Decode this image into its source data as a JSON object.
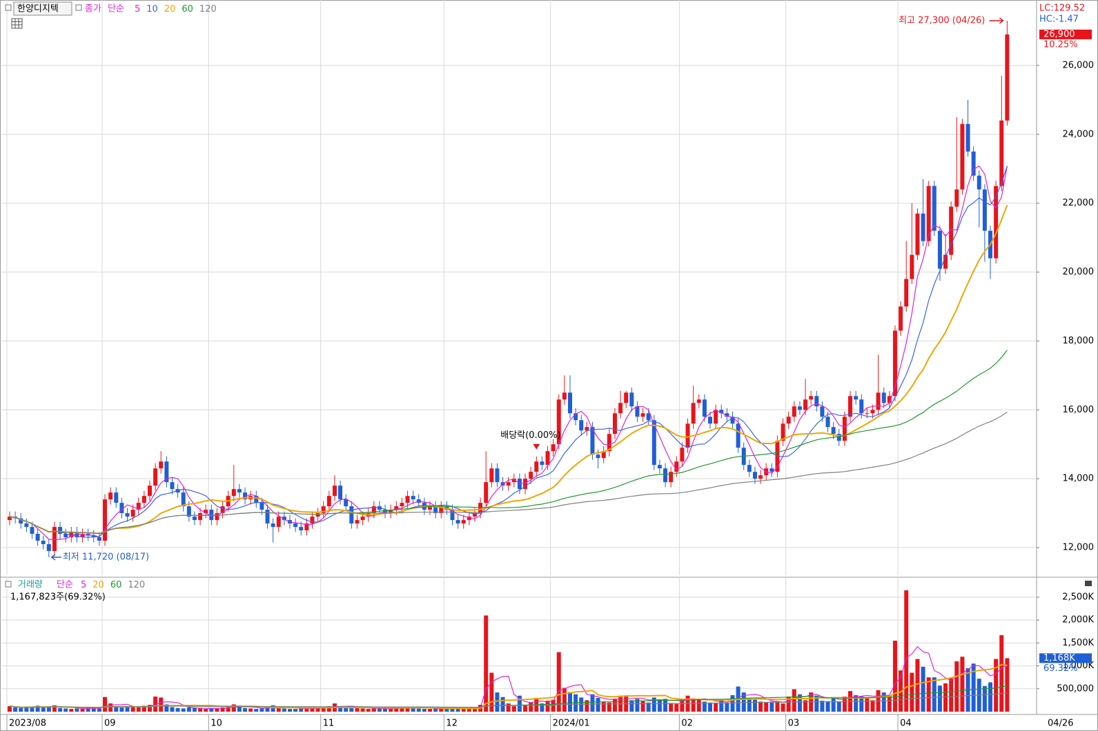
{
  "chart_data": {
    "type": "candlestick",
    "title": "한양디지텍",
    "categories": [
      "2023/08",
      null,
      null,
      null,
      null,
      null,
      null,
      null,
      null,
      null,
      null,
      null,
      null,
      null,
      null,
      null,
      null,
      "09",
      null,
      null,
      null,
      null,
      null,
      null,
      null,
      null,
      null,
      null,
      null,
      null,
      null,
      null,
      null,
      null,
      null,
      null,
      "10",
      null,
      null,
      null,
      null,
      null,
      null,
      null,
      null,
      null,
      null,
      null,
      null,
      null,
      null,
      null,
      null,
      null,
      null,
      null,
      "11",
      null,
      null,
      null,
      null,
      null,
      null,
      null,
      null,
      null,
      null,
      null,
      null,
      null,
      null,
      null,
      null,
      null,
      null,
      null,
      null,
      null,
      "12",
      null,
      null,
      null,
      null,
      null,
      null,
      null,
      null,
      null,
      null,
      null,
      null,
      null,
      null,
      null,
      null,
      null,
      null,
      "2024/01",
      null,
      null,
      null,
      null,
      null,
      null,
      null,
      null,
      null,
      null,
      null,
      null,
      null,
      null,
      null,
      null,
      null,
      null,
      null,
      null,
      null,
      null,
      "02",
      null,
      null,
      null,
      null,
      null,
      null,
      null,
      null,
      null,
      null,
      null,
      null,
      null,
      null,
      null,
      null,
      null,
      null,
      "03",
      null,
      null,
      null,
      null,
      null,
      null,
      null,
      null,
      null,
      null,
      null,
      null,
      null,
      null,
      null,
      null,
      null,
      null,
      null,
      "04",
      null,
      null,
      null,
      null,
      null,
      null,
      null,
      null,
      null,
      null,
      null,
      null,
      null,
      null,
      null,
      null,
      null,
      null,
      null
    ],
    "open": [
      12800,
      12900,
      12850,
      12700,
      12600,
      12400,
      12200,
      12100,
      11900,
      12600,
      12400,
      12300,
      12450,
      12300,
      12400,
      12350,
      12300,
      12200,
      13400,
      13600,
      13300,
      13000,
      12900,
      13100,
      13300,
      13500,
      13800,
      14300,
      14500,
      13900,
      13700,
      13600,
      13200,
      12900,
      12800,
      13000,
      13100,
      12800,
      13000,
      13200,
      13500,
      13700,
      13600,
      13400,
      13500,
      13300,
      13100,
      12700,
      12600,
      12900,
      12800,
      12700,
      12600,
      12500,
      12700,
      12900,
      13000,
      13200,
      13500,
      13800,
      13400,
      13200,
      12700,
      12800,
      12900,
      13000,
      13200,
      13100,
      13000,
      13100,
      13200,
      13300,
      13500,
      13400,
      13300,
      13100,
      13200,
      13000,
      13200,
      13100,
      12800,
      12700,
      12800,
      12900,
      13000,
      13300,
      13900,
      14300,
      13900,
      13800,
      13900,
      14000,
      13700,
      14000,
      14200,
      14500,
      14400,
      14800,
      15000,
      16300,
      16500,
      15900,
      15700,
      15400,
      15500,
      14700,
      14600,
      14800,
      15300,
      15900,
      16200,
      16500,
      16100,
      15800,
      15900,
      15700,
      14400,
      14300,
      13900,
      14200,
      14500,
      14900,
      15600,
      16200,
      16300,
      15800,
      15600,
      16000,
      15900,
      15800,
      15600,
      14900,
      14400,
      14200,
      14000,
      14100,
      14300,
      14200,
      15100,
      15600,
      15800,
      16100,
      16000,
      16300,
      16400,
      16100,
      15800,
      15500,
      15300,
      15100,
      15800,
      16400,
      16300,
      15900,
      15900,
      16000,
      16500,
      16200,
      16400,
      18300,
      19000,
      19800,
      20500,
      21700,
      20900,
      22500,
      21200,
      20100,
      20500,
      21900,
      22400,
      24300,
      23500,
      22800,
      22400,
      21200,
      20400,
      22500,
      24400
    ],
    "high": [
      13050,
      13050,
      13000,
      12850,
      12750,
      12550,
      12350,
      12250,
      12750,
      12750,
      12550,
      12600,
      12600,
      12550,
      12550,
      12500,
      12450,
      13550,
      13750,
      13750,
      13450,
      13150,
      13250,
      13450,
      13650,
      13950,
      14450,
      14800,
      14650,
      14050,
      13850,
      13750,
      13350,
      13050,
      13150,
      13250,
      13250,
      13150,
      13350,
      13650,
      14400,
      13850,
      13750,
      13650,
      13650,
      13450,
      13250,
      12850,
      13050,
      13050,
      12950,
      12850,
      12750,
      12850,
      13050,
      13150,
      13350,
      13650,
      14100,
      13950,
      13550,
      13350,
      12950,
      13050,
      13150,
      13350,
      13350,
      13250,
      13250,
      13350,
      13450,
      13650,
      13650,
      13550,
      13450,
      13350,
      13350,
      13350,
      13350,
      13250,
      12950,
      12950,
      13050,
      13150,
      13450,
      14800,
      14450,
      14450,
      14050,
      14050,
      14150,
      14150,
      14150,
      14350,
      14650,
      14650,
      14950,
      15150,
      16450,
      17000,
      17000,
      16050,
      15850,
      15650,
      15650,
      14850,
      14950,
      15450,
      16050,
      16550,
      16550,
      16650,
      16250,
      16050,
      16050,
      15850,
      14550,
      14450,
      14350,
      14650,
      15050,
      15750,
      16700,
      16450,
      16450,
      15950,
      16150,
      16150,
      16050,
      15950,
      15750,
      15050,
      14550,
      14350,
      14250,
      14450,
      14450,
      15250,
      15750,
      15950,
      16250,
      16250,
      16900,
      16550,
      16550,
      16250,
      15950,
      15650,
      15450,
      15950,
      16550,
      16550,
      16450,
      16050,
      16150,
      17600,
      16650,
      16550,
      18450,
      19150,
      20900,
      22000,
      21850,
      22700,
      22650,
      22650,
      21350,
      21100,
      22050,
      24500,
      24450,
      25000,
      23650,
      22950,
      22550,
      21350,
      22650,
      25700,
      27300
    ],
    "low": [
      12650,
      12700,
      12550,
      12450,
      12250,
      12050,
      11950,
      11720,
      11750,
      12250,
      12150,
      12150,
      12150,
      12150,
      12200,
      12150,
      12050,
      12050,
      13250,
      13150,
      12850,
      12750,
      12750,
      12950,
      13150,
      13350,
      13650,
      14150,
      13750,
      13550,
      13450,
      13050,
      12750,
      12650,
      12650,
      12850,
      12650,
      12650,
      12850,
      13050,
      13350,
      13450,
      13250,
      13250,
      13150,
      12950,
      12550,
      12150,
      12450,
      12650,
      12550,
      12450,
      12350,
      12350,
      12550,
      12750,
      12850,
      13050,
      13350,
      13250,
      13050,
      12550,
      12550,
      12650,
      12750,
      12850,
      12950,
      12850,
      12850,
      12950,
      13050,
      13150,
      13250,
      13150,
      12950,
      12950,
      12850,
      12850,
      12950,
      12650,
      12550,
      12550,
      12650,
      12750,
      12850,
      13150,
      13750,
      13750,
      13650,
      13650,
      13750,
      13550,
      13550,
      13850,
      14050,
      14250,
      14250,
      14650,
      14850,
      16150,
      15750,
      15550,
      15250,
      15250,
      14550,
      14300,
      14450,
      14650,
      15150,
      15750,
      16050,
      15950,
      15650,
      15650,
      15550,
      14250,
      14150,
      13750,
      13750,
      14050,
      14350,
      14750,
      15450,
      16050,
      15650,
      15450,
      15450,
      15750,
      15650,
      15450,
      14750,
      14250,
      14050,
      13850,
      13850,
      13950,
      14050,
      14050,
      14950,
      15450,
      15650,
      15850,
      15850,
      16150,
      15950,
      15650,
      15350,
      15150,
      14950,
      14950,
      15650,
      16150,
      15750,
      15750,
      15750,
      15850,
      16050,
      16050,
      16250,
      18150,
      18850,
      19650,
      20350,
      20750,
      20750,
      21050,
      19750,
      19950,
      20350,
      21750,
      22250,
      23350,
      22650,
      21300,
      20300,
      19800,
      20250,
      22350,
      24250
    ],
    "close": [
      12900,
      12850,
      12700,
      12600,
      12400,
      12200,
      12100,
      11900,
      12600,
      12400,
      12300,
      12450,
      12300,
      12400,
      12350,
      12300,
      12200,
      13400,
      13600,
      13300,
      13000,
      12900,
      13100,
      13300,
      13500,
      13800,
      14300,
      14500,
      13900,
      13700,
      13600,
      13200,
      12900,
      12800,
      13000,
      13100,
      12800,
      13000,
      13200,
      13500,
      13700,
      13600,
      13400,
      13500,
      13300,
      13100,
      12700,
      12600,
      12900,
      12800,
      12700,
      12600,
      12500,
      12700,
      12900,
      13000,
      13200,
      13500,
      13800,
      13400,
      13200,
      12700,
      12800,
      12900,
      13000,
      13200,
      13100,
      13000,
      13100,
      13200,
      13300,
      13500,
      13400,
      13300,
      13100,
      13200,
      13000,
      13200,
      13100,
      12800,
      12700,
      12800,
      12900,
      13000,
      13300,
      13900,
      14300,
      13900,
      13800,
      13900,
      14000,
      13700,
      14000,
      14200,
      14500,
      14400,
      14800,
      15000,
      16300,
      16500,
      15900,
      15700,
      15400,
      15500,
      14700,
      14600,
      14800,
      15300,
      15900,
      16200,
      16500,
      16100,
      15800,
      15900,
      15700,
      14400,
      14300,
      13900,
      14200,
      14500,
      14900,
      15600,
      16200,
      16300,
      15800,
      15600,
      16000,
      15900,
      15800,
      15600,
      14900,
      14400,
      14200,
      14000,
      14100,
      14300,
      14200,
      15100,
      15600,
      15800,
      16100,
      16000,
      16300,
      16400,
      16100,
      15800,
      15500,
      15300,
      15100,
      15800,
      16400,
      16300,
      15900,
      15900,
      16000,
      16500,
      16200,
      16400,
      18300,
      19000,
      19800,
      20500,
      21700,
      20900,
      22500,
      21200,
      20100,
      20500,
      21900,
      22400,
      24300,
      23500,
      22800,
      22400,
      21200,
      20400,
      22500,
      24400,
      26900
    ],
    "volume": [
      120000,
      90000,
      80000,
      100000,
      110000,
      130000,
      90000,
      120000,
      140000,
      80000,
      70000,
      60000,
      70000,
      60000,
      90000,
      80000,
      70000,
      320000,
      180000,
      100000,
      90000,
      120000,
      100000,
      90000,
      130000,
      150000,
      330000,
      310000,
      160000,
      100000,
      80000,
      70000,
      90000,
      80000,
      70000,
      60000,
      80000,
      70000,
      90000,
      100000,
      160000,
      110000,
      80000,
      70000,
      60000,
      70000,
      110000,
      140000,
      90000,
      70000,
      60000,
      60000,
      70000,
      80000,
      90000,
      70000,
      90000,
      120000,
      180000,
      110000,
      90000,
      100000,
      80000,
      70000,
      60000,
      70000,
      80000,
      70000,
      60000,
      70000,
      80000,
      110000,
      90000,
      70000,
      60000,
      60000,
      70000,
      60000,
      60000,
      70000,
      80000,
      70000,
      60000,
      70000,
      150000,
      2100000,
      850000,
      420000,
      320000,
      180000,
      120000,
      350000,
      140000,
      200000,
      300000,
      180000,
      240000,
      260000,
      1300000,
      520000,
      430000,
      380000,
      310000,
      250000,
      380000,
      300000,
      220000,
      200000,
      280000,
      350000,
      330000,
      250000,
      280000,
      230000,
      200000,
      310000,
      270000,
      280000,
      190000,
      170000,
      280000,
      350000,
      290000,
      260000,
      220000,
      200000,
      190000,
      250000,
      200000,
      360000,
      550000,
      420000,
      300000,
      260000,
      220000,
      200000,
      220000,
      220000,
      180000,
      330000,
      490000,
      380000,
      250000,
      420000,
      350000,
      240000,
      230000,
      310000,
      220000,
      330000,
      450000,
      360000,
      330000,
      300000,
      250000,
      470000,
      420000,
      360000,
      1550000,
      900000,
      2650000,
      850000,
      1150000,
      980000,
      750000,
      750000,
      570000,
      620000,
      730000,
      1100000,
      1200000,
      950000,
      1050000,
      720000,
      560000,
      640000,
      1150000,
      1670000,
      1167823
    ],
    "up_color": "#e8141b",
    "down_color": "#1f5fd6",
    "grid": true,
    "ylim": [
      11200,
      27800
    ],
    "yticks": [
      {
        "value": 12000,
        "label": "12,000"
      },
      {
        "value": 14000,
        "label": "14,000"
      },
      {
        "value": 16000,
        "label": "16,000"
      },
      {
        "value": 18000,
        "label": "18,000"
      },
      {
        "value": 20000,
        "label": "20,000"
      },
      {
        "value": 22000,
        "label": "22,000"
      },
      {
        "value": 24000,
        "label": "24,000"
      },
      {
        "value": 26000,
        "label": "26,000"
      }
    ],
    "volume_ylim": [
      0,
      2860000
    ],
    "volume_yticks": [
      {
        "value": 500000,
        "label": "500,000"
      },
      {
        "value": 1000000,
        "label": "1,000K"
      },
      {
        "value": 1500000,
        "label": "1,500K"
      },
      {
        "value": 2000000,
        "label": "2,000K"
      },
      {
        "value": 2500000,
        "label": "2,500K"
      }
    ],
    "price_label": "종가",
    "method": "단순",
    "ma": [
      {
        "period": 5,
        "color": "#e020d8"
      },
      {
        "period": 10,
        "color": "#3a62f0"
      },
      {
        "period": 20,
        "color": "#f0a500"
      },
      {
        "period": 60,
        "color": "#1e9a2a"
      },
      {
        "period": 120,
        "color": "#7f7f7f"
      }
    ],
    "volume_label": "거래량",
    "volume_ma": [
      {
        "period": 5,
        "color": "#e020d8"
      },
      {
        "period": 20,
        "color": "#f0a500"
      },
      {
        "period": 60,
        "color": "#1e9a2a"
      },
      {
        "period": 120,
        "color": "#7f7f7f"
      }
    ],
    "lc": "LC:129.52",
    "hc": "HC:-1.47",
    "last_price": {
      "value": 26900,
      "label": "26,900"
    },
    "change_pct": "10.25%",
    "last_volume": {
      "value": 1167823,
      "label": "1,168K"
    },
    "volume_info": "1,167,823주(69.32%)",
    "volume_pct": "69.32%",
    "high_annotation": "최고 27,300 (04/26)",
    "low_annotation": "최저 11,720 (08/17)",
    "dividend_annotation": "배당락(0.00%)",
    "last_date": "04/26"
  }
}
